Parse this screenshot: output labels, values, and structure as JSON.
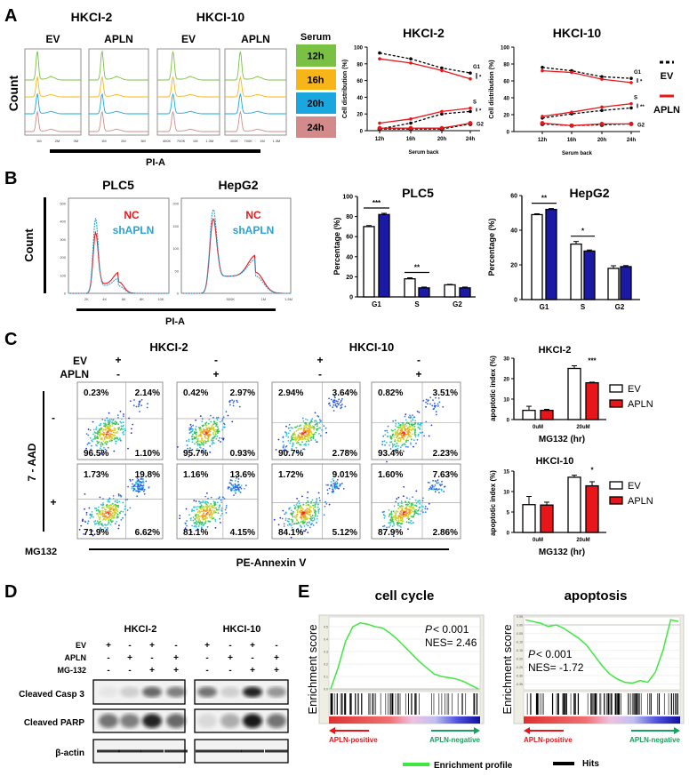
{
  "panel_labels": [
    "A",
    "B",
    "C",
    "D",
    "E"
  ],
  "panelA": {
    "cell_lines": [
      "HKCI-2",
      "HKCI-10"
    ],
    "conditions": [
      "EV",
      "APLN",
      "EV",
      "APLN"
    ],
    "y_label": "Count",
    "x_label": "PI-A",
    "ticks_hkci2": [
      "1M",
      "2M",
      "3M"
    ],
    "ticks_hkci10": [
      "400K",
      "700K",
      "1M",
      "1.3M"
    ],
    "serum_legend": {
      "title": "Serum",
      "items": [
        {
          "label": "12h",
          "color": "#7ac143"
        },
        {
          "label": "16h",
          "color": "#f7b519"
        },
        {
          "label": "20h",
          "color": "#1aa7e0"
        },
        {
          "label": "24h",
          "color": "#d38a8a"
        }
      ]
    },
    "legend": {
      "ev": "EV",
      "apln": "APLN",
      "ev_color": "#000000",
      "apln_color": "#e8161b"
    }
  },
  "panelB": {
    "cell_lines": [
      "PLC5",
      "HepG2"
    ],
    "nc_label": "NC",
    "sh_label": "shAPLN",
    "nc_color": "#e8161b",
    "sh_color": "#29a3d8",
    "y_label": "Count",
    "x_label": "PI-A",
    "plc5_yticks": [
      "0",
      "100",
      "200",
      "300",
      "400",
      "500"
    ],
    "plc5_xticks": [
      "2K",
      "4K",
      "6K",
      "8K",
      "10K"
    ],
    "hepg2_yticks": [
      "0",
      "50",
      "100",
      "150",
      "200"
    ],
    "hepg2_xticks": [
      "500K",
      "1M",
      "1.5M"
    ]
  },
  "panelC": {
    "cell_lines": [
      "HKCI-2",
      "HKCI-10"
    ],
    "ev_label": "EV",
    "apln_label": "APLN",
    "ev_signs": [
      "+",
      "-",
      "+",
      "-"
    ],
    "apln_signs": [
      "-",
      "+",
      "-",
      "+"
    ],
    "y_label": "7 - AAD",
    "mg132_label": "MG132",
    "mg132_signs": [
      "-",
      "+"
    ],
    "x_label": "PE-Annexin V",
    "quadrants": [
      [
        [
          "0.23%",
          "2.14%",
          "96.5%",
          "1.10%"
        ],
        [
          "0.42%",
          "2.97%",
          "95.7%",
          "0.93%"
        ],
        [
          "2.94%",
          "3.64%",
          "90.7%",
          "2.78%"
        ],
        [
          "0.82%",
          "3.51%",
          "93.4%",
          "2.23%"
        ]
      ],
      [
        [
          "1.73%",
          "19.8%",
          "71.9%",
          "6.62%"
        ],
        [
          "1.16%",
          "13.6%",
          "81.1%",
          "4.15%"
        ],
        [
          "1.72%",
          "9.01%",
          "84.1%",
          "5.12%"
        ],
        [
          "1.60%",
          "7.63%",
          "87.9%",
          "2.86%"
        ]
      ]
    ]
  },
  "panelD": {
    "cell_lines": [
      "HKCI-2",
      "HKCI-10"
    ],
    "row_labels": [
      "EV",
      "APLN",
      "MG-132"
    ],
    "signs": [
      [
        "+",
        "-",
        "+",
        "-",
        "+",
        "-",
        "+",
        "-"
      ],
      [
        "-",
        "+",
        "-",
        "+",
        "-",
        "+",
        "-",
        "+"
      ],
      [
        "-",
        "-",
        "+",
        "+",
        "-",
        "-",
        "+",
        "+"
      ]
    ],
    "blots": [
      {
        "label": "Cleaved Casp 3",
        "band_intensity": [
          0.05,
          0.15,
          0.6,
          0.5,
          0.55,
          0.15,
          0.9,
          0.4
        ]
      },
      {
        "label": "Cleaved PARP",
        "band_intensity": [
          0.55,
          0.5,
          0.9,
          0.6,
          0.1,
          0.3,
          0.95,
          0.55
        ]
      },
      {
        "label": "β-actin",
        "band_intensity": [
          0.85,
          0.85,
          0.85,
          0.85,
          0.85,
          0.85,
          0.85,
          0.85
        ]
      }
    ]
  },
  "panelE": {
    "legend": {
      "profile": "Enrichment profile",
      "hits": "Hits",
      "profile_color": "#3ee83e",
      "hits_color": "#000000"
    }
  },
  "chart_data": [
    {
      "type": "line",
      "title": "HKCI-2",
      "xlabel": "Serum back",
      "ylabel": "Cell distribution (%)",
      "categories": [
        "12h",
        "16h",
        "20h",
        "24h"
      ],
      "ylim": [
        0,
        100
      ],
      "yticks": [
        "0",
        "20",
        "40",
        "60",
        "80",
        "100"
      ],
      "phase_labels": [
        "G1",
        "S",
        "G2"
      ],
      "series": [
        {
          "name": "EV",
          "phase": "G1",
          "values": [
            93,
            86,
            75,
            69
          ]
        },
        {
          "name": "APLN",
          "phase": "G1",
          "values": [
            86,
            81,
            72,
            62
          ]
        },
        {
          "name": "EV",
          "phase": "S",
          "values": [
            2,
            9,
            20,
            23
          ]
        },
        {
          "name": "APLN",
          "phase": "S",
          "values": [
            9,
            14,
            23,
            27
          ]
        },
        {
          "name": "EV",
          "phase": "G2",
          "values": [
            2,
            2,
            2,
            8
          ]
        },
        {
          "name": "APLN",
          "phase": "G2",
          "values": [
            3,
            3,
            3,
            9
          ]
        }
      ],
      "significance": {
        "G1": "*",
        "S": "*"
      }
    },
    {
      "type": "line",
      "title": "HKCI-10",
      "xlabel": "Serum back",
      "ylabel": "Cell distribution (%)",
      "categories": [
        "12h",
        "16h",
        "20h",
        "24h"
      ],
      "ylim": [
        0,
        100
      ],
      "yticks": [
        "0",
        "20",
        "40",
        "60",
        "80",
        "100"
      ],
      "phase_labels": [
        "G1",
        "S",
        "G2"
      ],
      "series": [
        {
          "name": "EV",
          "phase": "G1",
          "values": [
            76,
            72,
            65,
            63
          ]
        },
        {
          "name": "APLN",
          "phase": "G1",
          "values": [
            72,
            70,
            62,
            58
          ]
        },
        {
          "name": "EV",
          "phase": "S",
          "values": [
            16,
            21,
            25,
            28
          ]
        },
        {
          "name": "APLN",
          "phase": "S",
          "values": [
            18,
            23,
            29,
            33
          ]
        },
        {
          "name": "EV",
          "phase": "G2",
          "values": [
            9,
            7,
            8,
            9
          ]
        },
        {
          "name": "APLN",
          "phase": "G2",
          "values": [
            10,
            7,
            9,
            9
          ]
        }
      ],
      "significance": {
        "G1": "*",
        "S": "**"
      }
    },
    {
      "type": "bar",
      "title": "PLC5",
      "ylabel": "Percentage (%)",
      "categories": [
        "G1",
        "S",
        "G2"
      ],
      "ylim": [
        0,
        100
      ],
      "yticks": [
        "0",
        "20",
        "40",
        "60",
        "80",
        "100"
      ],
      "series": [
        {
          "values": [
            70,
            18,
            12
          ],
          "errors": [
            1,
            1,
            0.5
          ],
          "color": "#ffffff"
        },
        {
          "values": [
            82,
            9,
            9
          ],
          "errors": [
            1.2,
            0.8,
            0.8
          ],
          "color": "#1a1aa6"
        }
      ],
      "significance": [
        {
          "category": "G1",
          "label": "***"
        },
        {
          "category": "S",
          "label": "**"
        }
      ]
    },
    {
      "type": "bar",
      "title": "HepG2",
      "ylabel": "Percentage (%)",
      "categories": [
        "G1",
        "S",
        "G2"
      ],
      "ylim": [
        0,
        60
      ],
      "yticks": [
        "0",
        "20",
        "40",
        "60"
      ],
      "series": [
        {
          "values": [
            49,
            32,
            18
          ],
          "errors": [
            0.5,
            1.5,
            1.5
          ],
          "color": "#ffffff"
        },
        {
          "values": [
            52,
            28,
            19
          ],
          "errors": [
            0.5,
            0.6,
            0.6
          ],
          "color": "#1a1aa6"
        }
      ],
      "significance": [
        {
          "category": "G1",
          "label": "**"
        },
        {
          "category": "S",
          "label": "*"
        }
      ]
    },
    {
      "type": "bar",
      "title": "HKCI-2",
      "ylabel": "apoptotic index (%)",
      "xlabel": "MG132 (hr)",
      "categories": [
        "0uM",
        "20uM"
      ],
      "ylim": [
        0,
        30
      ],
      "yticks": [
        "0",
        "10",
        "20",
        "30"
      ],
      "series": [
        {
          "name": "EV",
          "values": [
            4.5,
            25
          ],
          "errors": [
            2,
            1.3
          ],
          "color": "#ffffff"
        },
        {
          "name": "APLN",
          "values": [
            4.5,
            18
          ],
          "errors": [
            0.5,
            0.3
          ],
          "color": "#e8161b"
        }
      ],
      "significance": [
        {
          "category": "20uM",
          "label": "***"
        }
      ]
    },
    {
      "type": "bar",
      "title": "HKCI-10",
      "ylabel": "apoptotic index (%)",
      "xlabel": "MG132 (hr)",
      "categories": [
        "0uM",
        "20uM"
      ],
      "ylim": [
        0,
        15
      ],
      "yticks": [
        "0",
        "5",
        "10",
        "15"
      ],
      "series": [
        {
          "name": "EV",
          "values": [
            6.8,
            13.5
          ],
          "errors": [
            2,
            0.5
          ],
          "color": "#ffffff"
        },
        {
          "name": "APLN",
          "values": [
            6.7,
            11.4
          ],
          "errors": [
            0.7,
            1
          ],
          "color": "#e8161b"
        }
      ],
      "significance": [
        {
          "category": "20uM",
          "label": "*"
        }
      ]
    },
    {
      "type": "line",
      "title": "cell cycle",
      "ylabel": "Enrichment score",
      "ylim": [
        0,
        0.55
      ],
      "yticks": [
        "0.0",
        "0.1",
        "0.2",
        "0.3",
        "0.4",
        "0.5"
      ],
      "es_values": [
        0,
        0.17,
        0.38,
        0.5,
        0.53,
        0.52,
        0.5,
        0.49,
        0.45,
        0.4,
        0.34,
        0.28,
        0.22,
        0.17,
        0.12,
        0.1,
        0.09,
        0.08,
        0.06,
        0.03,
        0
      ],
      "p_label": "P",
      "p_text": "< 0.001",
      "nes_text": "NES= 2.46",
      "left_label": "APLN-positive",
      "right_label": "APLN-negative"
    },
    {
      "type": "line",
      "title": "apoptosis",
      "ylabel": "Enrichment score",
      "ylim": [
        -0.37,
        0.06
      ],
      "yticks": [
        "0.05",
        "0.00",
        "-0.05",
        "-0.10",
        "-0.15",
        "-0.20",
        "-0.25",
        "-0.30",
        "-0.35"
      ],
      "es_values": [
        0.03,
        0.02,
        0.01,
        -0.01,
        0,
        -0.02,
        -0.05,
        -0.08,
        -0.12,
        -0.18,
        -0.24,
        -0.29,
        -0.32,
        -0.34,
        -0.345,
        -0.33,
        -0.34,
        -0.28,
        -0.15,
        0.03,
        0.02
      ],
      "p_label": "P",
      "p_text": "< 0.001",
      "nes_text": "NES= -1.72",
      "left_label": "APLN-positive",
      "right_label": "APLN-negative"
    }
  ]
}
